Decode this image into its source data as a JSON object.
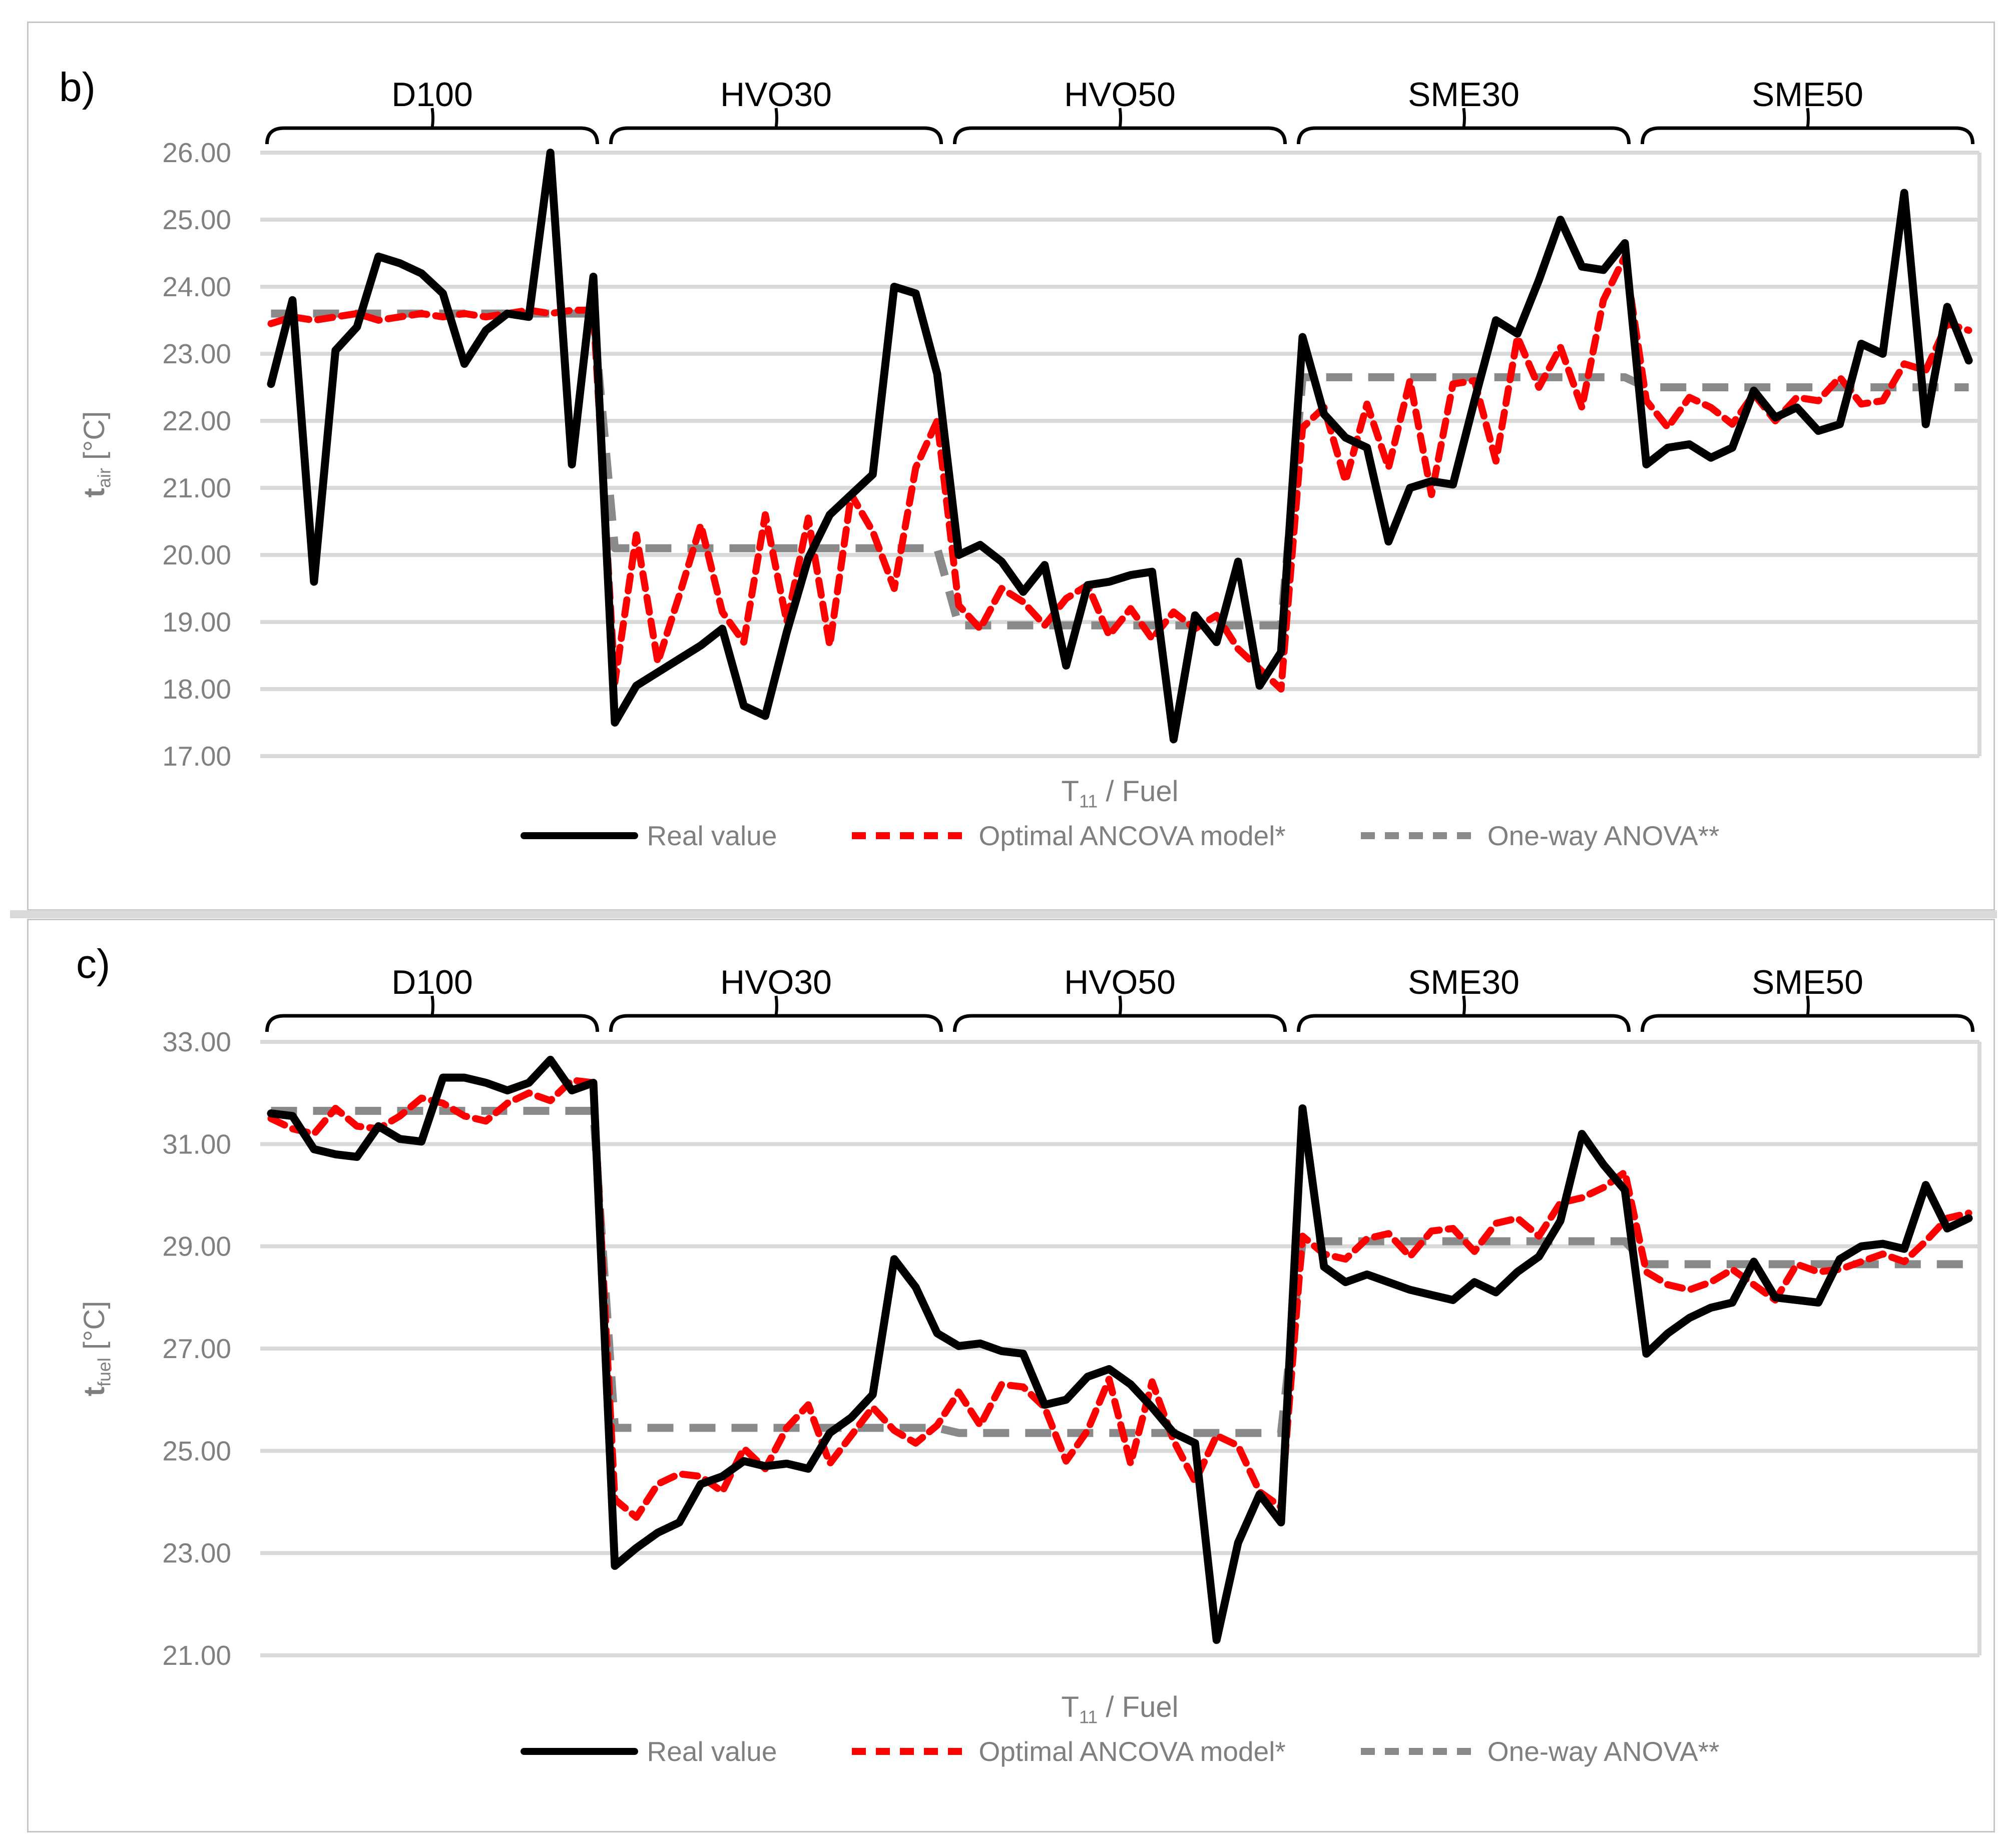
{
  "legend": {
    "items": [
      {
        "label": "Real value",
        "color": "#000000",
        "style": "solid"
      },
      {
        "label": "Optimal ANCOVA model*",
        "color": "#ff0000",
        "style": "dashed"
      },
      {
        "label": "One-way ANOVA**",
        "color": "#898989",
        "style": "dashed"
      }
    ]
  },
  "colors": {
    "real": "#000000",
    "ancova": "#ff0000",
    "anova": "#898989",
    "gridline": "#d9d9d9",
    "axis_text": "#808080",
    "frame": "#c6c6c6"
  },
  "chart_data": [
    {
      "type": "line",
      "panel_label": "b)",
      "ylabel": {
        "main": "t",
        "sub": "air",
        "rest": " [°C]"
      },
      "xlabel": {
        "main": "T",
        "sub": "11",
        "rest": " / Fuel"
      },
      "ylim": [
        17,
        26
      ],
      "ytick_step": 1,
      "ytick_labels": [
        "26.00",
        "25.00",
        "24.00",
        "23.00",
        "22.00",
        "21.00",
        "20.00",
        "19.00",
        "18.00",
        "17.00"
      ],
      "categories": [
        "D100",
        "HVO30",
        "HVO50",
        "SME30",
        "SME50"
      ],
      "grid": true,
      "legend_position": "bottom",
      "series": [
        {
          "name": "Real value",
          "groups": {
            "D100": [
              22.55,
              23.8,
              19.6,
              23.05,
              23.4,
              24.45,
              24.35,
              24.2,
              23.9,
              22.85,
              23.35,
              23.6,
              23.55,
              26.0,
              21.35,
              24.15
            ],
            "HVO30": [
              17.5,
              18.05,
              18.25,
              18.45,
              18.65,
              18.9,
              17.75,
              17.6,
              18.85,
              19.95,
              20.6,
              20.9,
              21.2,
              24.0,
              23.9,
              22.7
            ],
            "HVO50": [
              20.0,
              20.15,
              19.9,
              19.45,
              19.85,
              18.35,
              19.55,
              19.6,
              19.7,
              19.75,
              17.25,
              19.1,
              18.7,
              19.9,
              18.05,
              18.55
            ],
            "SME30": [
              23.25,
              22.1,
              21.75,
              21.6,
              20.2,
              21.0,
              21.1,
              21.05,
              22.3,
              23.5,
              23.3,
              24.1,
              25.0,
              24.3,
              24.25,
              24.65
            ],
            "SME50": [
              21.35,
              21.6,
              21.65,
              21.45,
              21.6,
              22.45,
              22.05,
              22.2,
              21.85,
              21.95,
              23.15,
              23.0,
              25.4,
              21.95,
              23.7,
              22.9
            ]
          }
        },
        {
          "name": "Optimal ANCOVA model*",
          "groups": {
            "D100": [
              23.45,
              23.55,
              23.5,
              23.55,
              23.6,
              23.5,
              23.55,
              23.6,
              23.55,
              23.6,
              23.55,
              23.6,
              23.65,
              23.6,
              23.65,
              23.65
            ],
            "HVO30": [
              18.1,
              20.3,
              18.4,
              19.4,
              20.45,
              19.15,
              18.7,
              20.6,
              19.0,
              20.55,
              18.65,
              20.9,
              20.35,
              19.5,
              21.3,
              22.0
            ],
            "HVO50": [
              19.25,
              18.9,
              19.5,
              19.3,
              18.95,
              19.35,
              19.55,
              18.8,
              19.2,
              18.75,
              19.15,
              18.9,
              19.1,
              18.6,
              18.3,
              18.0
            ],
            "SME30": [
              21.9,
              22.2,
              21.1,
              22.25,
              21.3,
              22.6,
              20.9,
              22.55,
              22.6,
              21.4,
              23.25,
              22.5,
              23.1,
              22.2,
              23.8,
              24.45
            ],
            "SME50": [
              22.3,
              21.9,
              22.35,
              22.2,
              21.95,
              22.4,
              22.0,
              22.35,
              22.3,
              22.65,
              22.25,
              22.3,
              22.85,
              22.75,
              23.45,
              23.35
            ]
          }
        },
        {
          "name": "One-way ANOVA**",
          "levels": {
            "D100": 23.6,
            "HVO30": 20.1,
            "HVO50": 18.95,
            "SME30": 22.65,
            "SME50": 22.5
          }
        }
      ]
    },
    {
      "type": "line",
      "panel_label": "c)",
      "ylabel": {
        "main": "t",
        "sub": "fuel",
        "rest": " [°C]"
      },
      "xlabel": {
        "main": "T",
        "sub": "11",
        "rest": " / Fuel"
      },
      "ylim": [
        21,
        33
      ],
      "ytick_step": 2,
      "ytick_labels": [
        "33.00",
        "31.00",
        "29.00",
        "27.00",
        "25.00",
        "23.00",
        "21.00"
      ],
      "categories": [
        "D100",
        "HVO30",
        "HVO50",
        "SME30",
        "SME50"
      ],
      "grid": true,
      "legend_position": "bottom",
      "series": [
        {
          "name": "Real value",
          "groups": {
            "D100": [
              31.6,
              31.55,
              30.9,
              30.8,
              30.75,
              31.35,
              31.1,
              31.05,
              32.3,
              32.3,
              32.2,
              32.05,
              32.2,
              32.65,
              32.05,
              32.2
            ],
            "HVO30": [
              22.75,
              23.1,
              23.4,
              23.6,
              24.35,
              24.5,
              24.8,
              24.7,
              24.75,
              24.65,
              25.35,
              25.65,
              26.1,
              28.75,
              28.2,
              27.3
            ],
            "HVO50": [
              27.05,
              27.1,
              26.95,
              26.9,
              25.9,
              26.0,
              26.45,
              26.6,
              26.3,
              25.85,
              25.35,
              25.15,
              21.3,
              23.2,
              24.15,
              23.6
            ],
            "SME30": [
              31.7,
              28.6,
              28.3,
              28.45,
              28.3,
              28.15,
              28.05,
              27.95,
              28.3,
              28.1,
              28.5,
              28.8,
              29.5,
              31.2,
              30.6,
              30.1
            ],
            "SME50": [
              26.9,
              27.3,
              27.6,
              27.8,
              27.9,
              28.7,
              28.0,
              27.95,
              27.9,
              28.75,
              29.0,
              29.05,
              28.95,
              30.2,
              29.35,
              29.55
            ]
          }
        },
        {
          "name": "Optimal ANCOVA model*",
          "groups": {
            "D100": [
              31.5,
              31.3,
              31.2,
              31.7,
              31.35,
              31.3,
              31.55,
              31.9,
              31.8,
              31.55,
              31.45,
              31.8,
              32.0,
              31.85,
              32.25,
              32.2
            ],
            "HVO30": [
              24.05,
              23.7,
              24.35,
              24.55,
              24.5,
              24.2,
              25.05,
              24.65,
              25.45,
              25.9,
              24.75,
              25.3,
              25.85,
              25.4,
              25.15,
              25.5
            ],
            "HVO50": [
              26.15,
              25.5,
              26.3,
              26.25,
              25.85,
              24.8,
              25.4,
              26.4,
              24.75,
              26.35,
              25.2,
              24.4,
              25.3,
              25.1,
              24.2,
              23.9
            ],
            "SME30": [
              29.2,
              28.85,
              28.75,
              29.15,
              29.25,
              28.8,
              29.3,
              29.35,
              28.9,
              29.45,
              29.55,
              29.2,
              29.85,
              29.95,
              30.15,
              30.45
            ],
            "SME50": [
              28.5,
              28.25,
              28.15,
              28.3,
              28.55,
              28.25,
              27.95,
              28.65,
              28.5,
              28.55,
              28.7,
              28.85,
              28.7,
              29.1,
              29.55,
              29.65
            ]
          }
        },
        {
          "name": "One-way ANOVA**",
          "levels": {
            "D100": 31.65,
            "HVO30": 25.45,
            "HVO50": 25.35,
            "SME30": 29.1,
            "SME50": 28.65
          }
        }
      ]
    }
  ]
}
